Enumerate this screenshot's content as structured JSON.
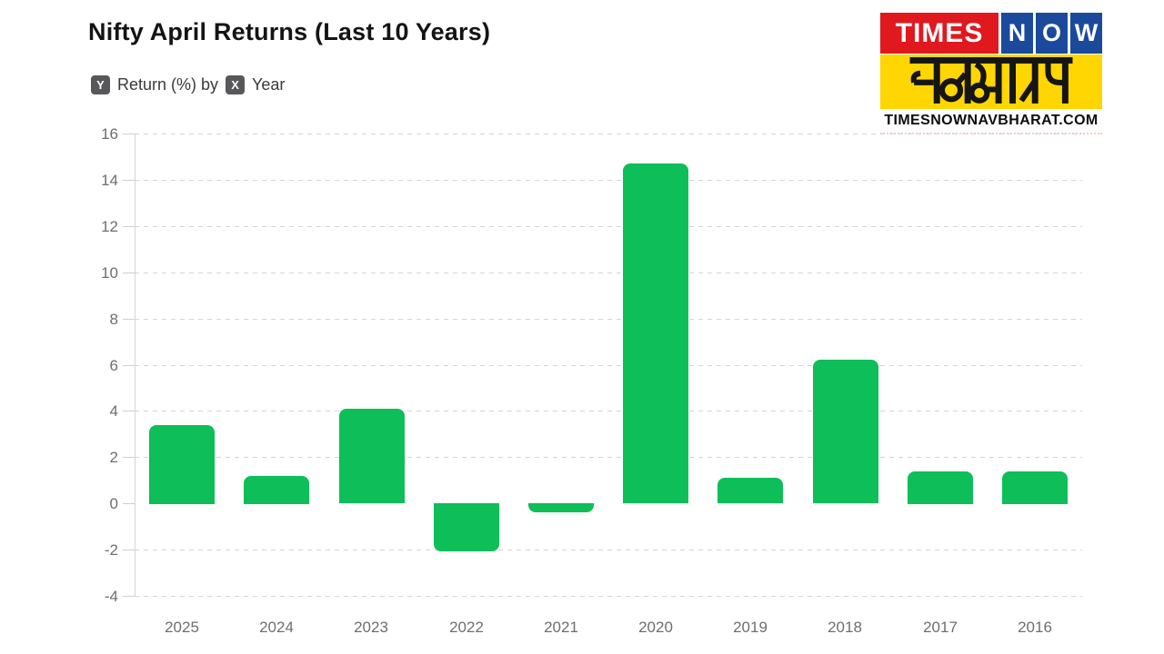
{
  "header": {
    "title": "Nifty April Returns (Last 10 Years)",
    "y_axis_badge": "Y",
    "y_axis_label": "Return (%) by",
    "x_axis_badge": "X",
    "x_axis_label": "Year"
  },
  "logo": {
    "times_text": "TIMES",
    "now_letters": [
      "N",
      "O",
      "W"
    ],
    "hindi_text": "नवभारत",
    "website_text": "TIMESNOWNAVBHARAT.COM",
    "red": "#e0191f",
    "blue": "#1b4a9c",
    "yellow": "#ffd502"
  },
  "chart_data": {
    "type": "bar",
    "title": "Nifty April Returns (Last 10 Years)",
    "xlabel": "Year",
    "ylabel": "Return (%)",
    "categories": [
      "2025",
      "2024",
      "2023",
      "2022",
      "2021",
      "2020",
      "2019",
      "2018",
      "2017",
      "2016"
    ],
    "values": [
      3.4,
      1.2,
      4.1,
      -2.1,
      -0.4,
      14.7,
      1.1,
      6.2,
      1.4,
      1.4
    ],
    "ylim": [
      -4,
      16
    ],
    "ytick_step": 2,
    "yticks": [
      16,
      14,
      12,
      10,
      8,
      6,
      4,
      2,
      0,
      -2,
      -4
    ],
    "bar_color": "#0ebe58",
    "grid": "horizontal-dashed",
    "zero_gridline": false,
    "legend_position": "none"
  }
}
